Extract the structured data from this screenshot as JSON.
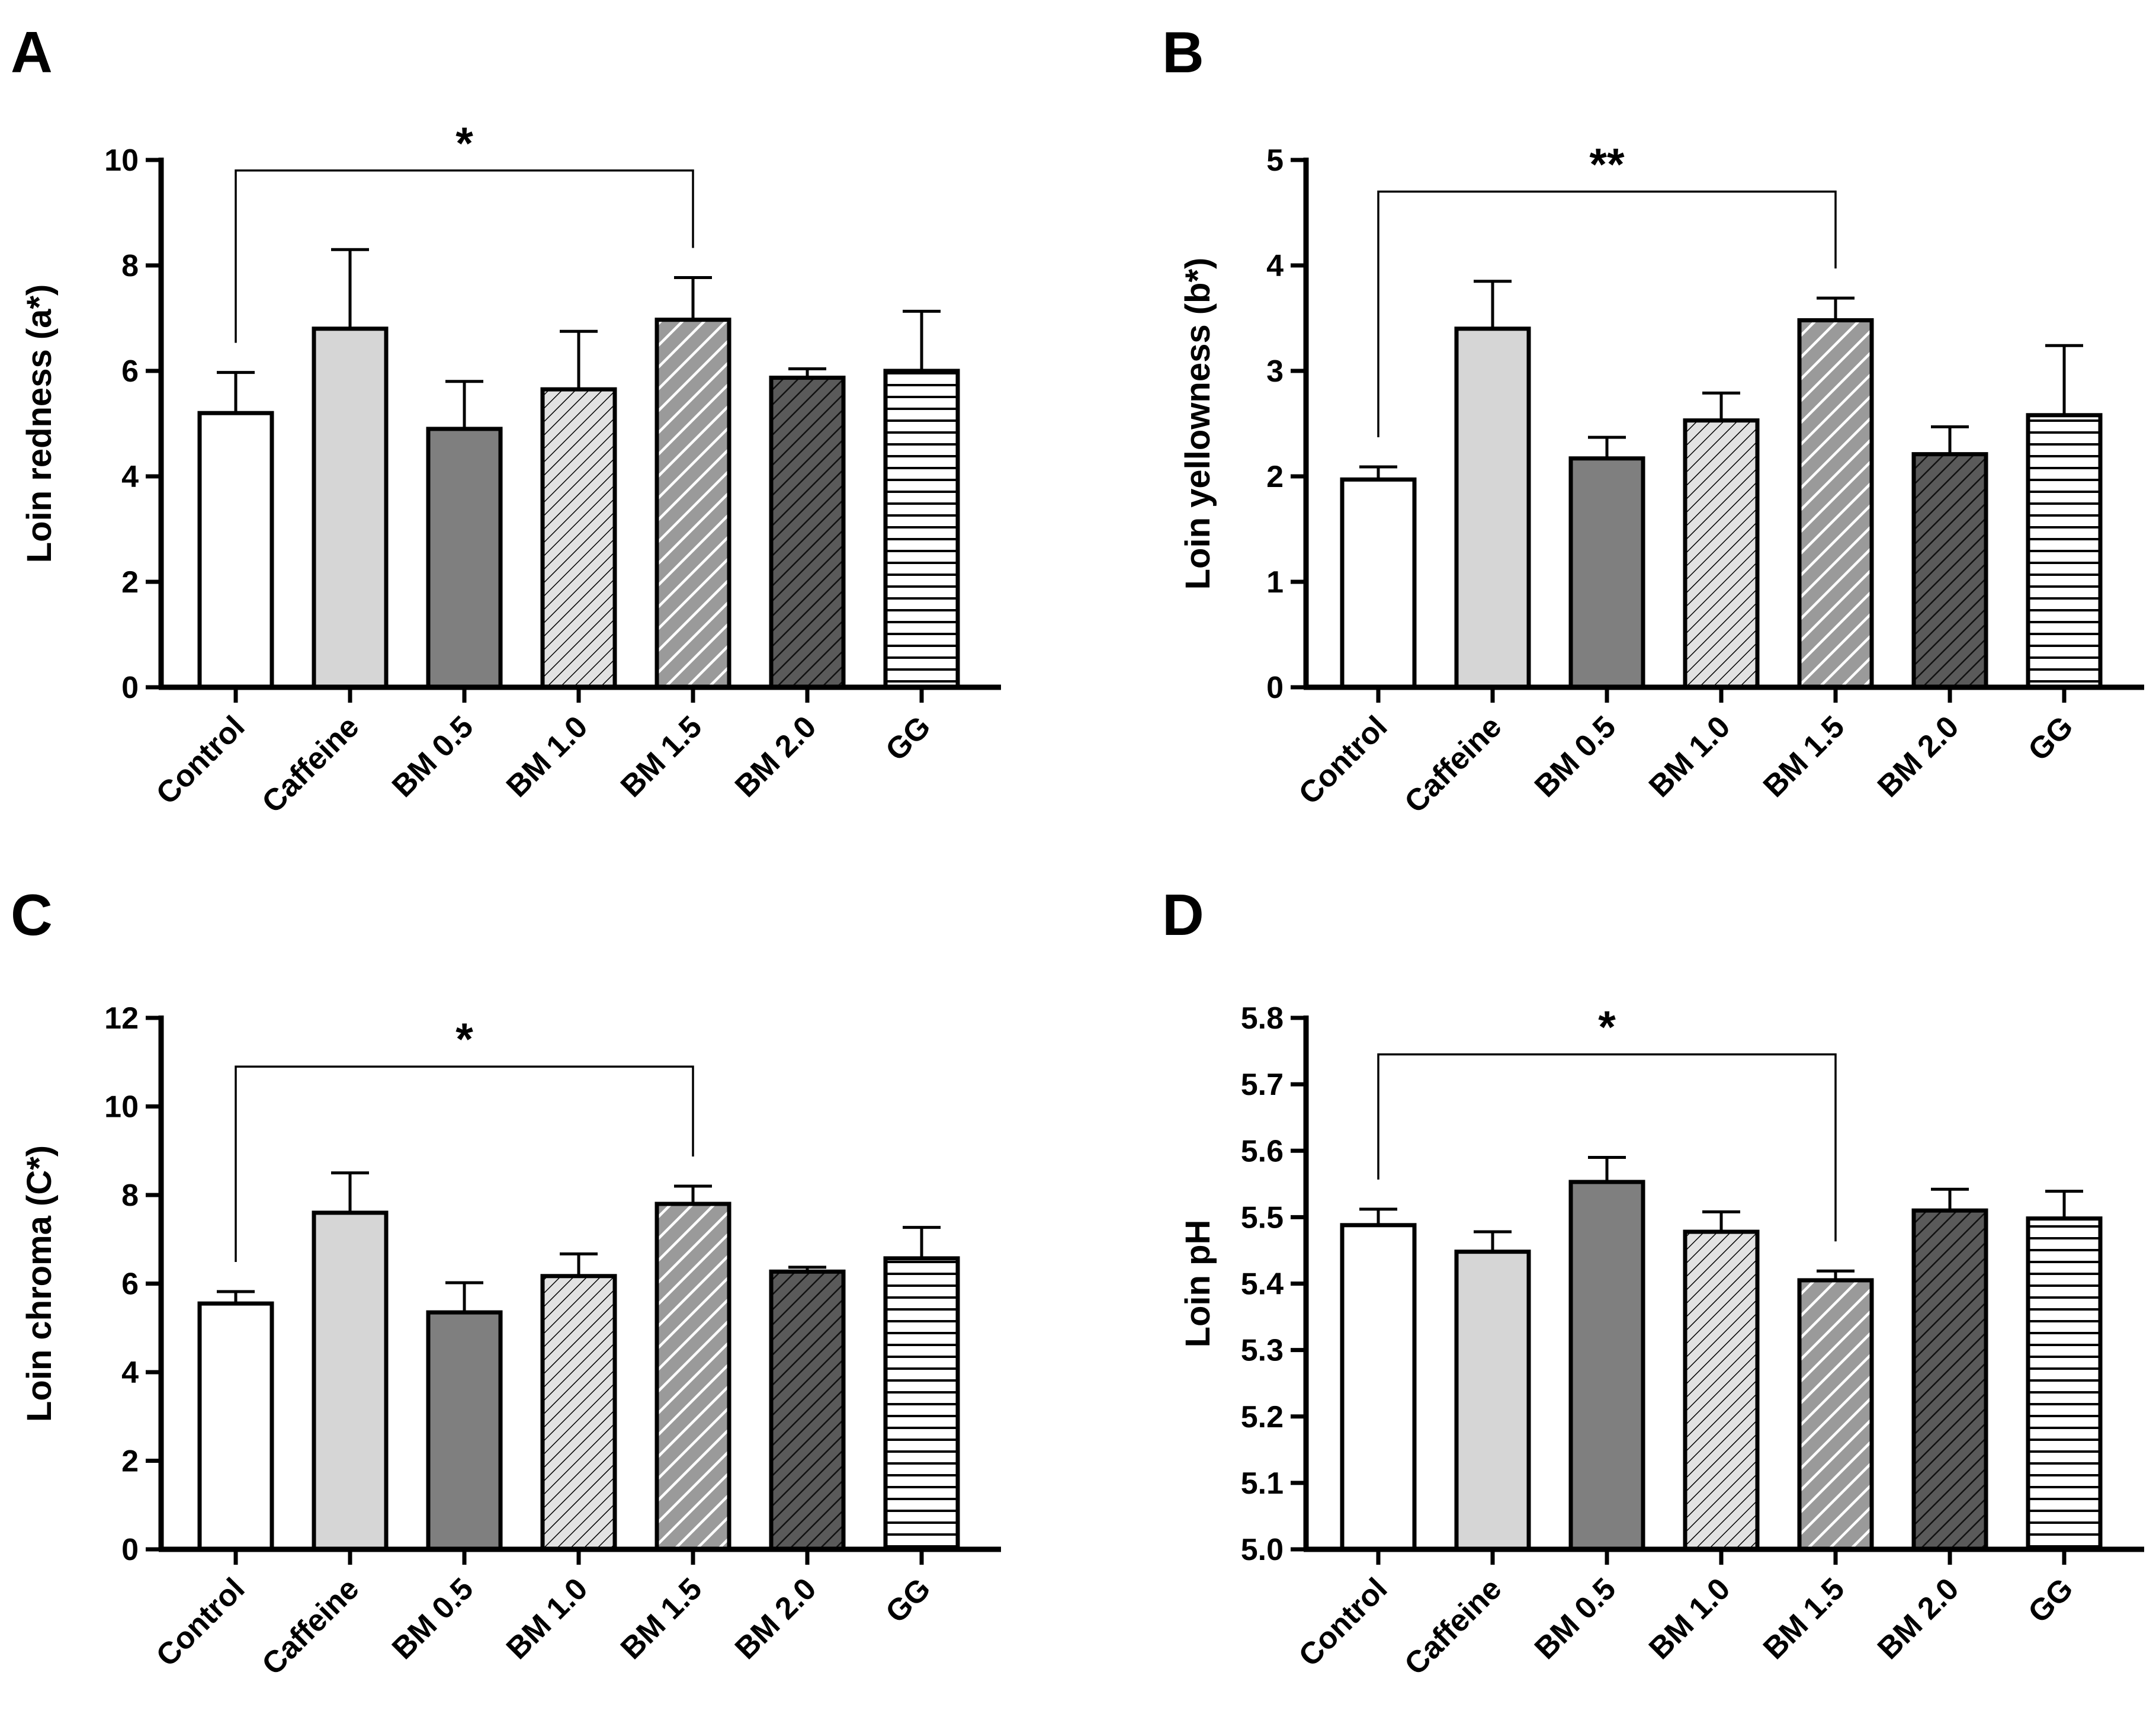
{
  "colors": {
    "white": "#ffffff",
    "light_gray": "#d6d6d6",
    "dark_gray": "#7f7f7f",
    "charcoal": "#585858",
    "ink": "#000000"
  },
  "bar_styles": [
    "solid-white",
    "solid-light",
    "solid-dark",
    "hatch-dense",
    "hatch-wide",
    "hatch-dark",
    "horizontal-lines"
  ],
  "chart_data": [
    {
      "panel": "A",
      "type": "bar",
      "ylabel": "Loin redness (a*)",
      "categories": [
        "Control",
        "Caffeine",
        "BM 0.5",
        "BM 1.0",
        "BM 1.5",
        "BM 2.0",
        "GG"
      ],
      "values": [
        5.2,
        6.8,
        4.9,
        5.65,
        6.97,
        5.87,
        6.0
      ],
      "errors": [
        0.77,
        1.5,
        0.9,
        1.1,
        0.8,
        0.17,
        1.13
      ],
      "ylim": [
        0,
        10
      ],
      "yticks": [
        0,
        2,
        4,
        6,
        8,
        10
      ],
      "ytick_labels": [
        "0",
        "2",
        "4",
        "6",
        "8",
        "10"
      ],
      "significance": {
        "from": 0,
        "to": 4,
        "bracket_y": 9.8,
        "label": "*"
      }
    },
    {
      "panel": "B",
      "type": "bar",
      "ylabel": "Loin yellowness (b*)",
      "categories": [
        "Control",
        "Caffeine",
        "BM 0.5",
        "BM 1.0",
        "BM 1.5",
        "BM 2.0",
        "GG"
      ],
      "values": [
        1.97,
        3.4,
        2.17,
        2.53,
        3.48,
        2.21,
        2.58
      ],
      "errors": [
        0.12,
        0.45,
        0.2,
        0.26,
        0.21,
        0.26,
        0.66
      ],
      "ylim": [
        0,
        5
      ],
      "yticks": [
        0,
        1,
        2,
        3,
        4,
        5
      ],
      "ytick_labels": [
        "0",
        "1",
        "2",
        "3",
        "4",
        "5"
      ],
      "significance": {
        "from": 0,
        "to": 4,
        "bracket_y": 4.7,
        "label": "**"
      }
    },
    {
      "panel": "C",
      "type": "bar",
      "ylabel": "Loin chroma (C*)",
      "categories": [
        "Control",
        "Caffeine",
        "BM 0.5",
        "BM 1.0",
        "BM 1.5",
        "BM 2.0",
        "GG"
      ],
      "values": [
        5.55,
        7.6,
        5.35,
        6.17,
        7.8,
        6.27,
        6.57
      ],
      "errors": [
        0.27,
        0.9,
        0.67,
        0.5,
        0.4,
        0.1,
        0.7
      ],
      "ylim": [
        0,
        12
      ],
      "yticks": [
        0,
        2,
        4,
        6,
        8,
        10,
        12
      ],
      "ytick_labels": [
        "0",
        "2",
        "4",
        "6",
        "8",
        "10",
        "12"
      ],
      "significance": {
        "from": 0,
        "to": 4,
        "bracket_y": 10.9,
        "label": "*"
      }
    },
    {
      "panel": "D",
      "type": "bar",
      "ylabel": "Loin pH",
      "categories": [
        "Control",
        "Caffeine",
        "BM 0.5",
        "BM 1.0",
        "BM 1.5",
        "BM 2.0",
        "GG"
      ],
      "values": [
        5.488,
        5.448,
        5.553,
        5.478,
        5.405,
        5.51,
        5.498
      ],
      "errors": [
        0.024,
        0.03,
        0.037,
        0.03,
        0.014,
        0.032,
        0.041
      ],
      "ylim": [
        5.0,
        5.8
      ],
      "yticks": [
        5.0,
        5.1,
        5.2,
        5.3,
        5.4,
        5.5,
        5.6,
        5.7,
        5.8
      ],
      "ytick_labels": [
        "5.0",
        "5.1",
        "5.2",
        "5.3",
        "5.4",
        "5.5",
        "5.6",
        "5.7",
        "5.8"
      ],
      "significance": {
        "from": 0,
        "to": 4,
        "bracket_y": 5.745,
        "label": "*"
      }
    }
  ]
}
